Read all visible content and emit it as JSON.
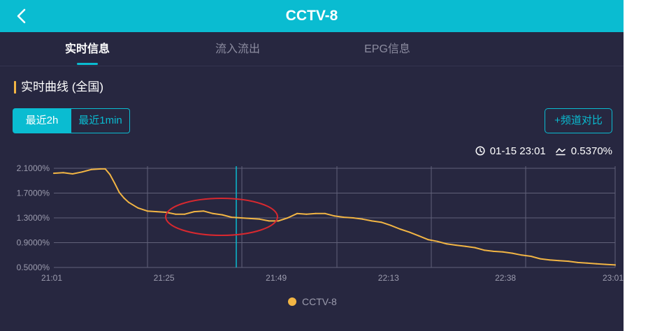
{
  "header": {
    "title": "CCTV-8",
    "back_icon": "chevron-left-icon"
  },
  "tabs": [
    {
      "label": "实时信息",
      "active": true
    },
    {
      "label": "流入流出",
      "active": false
    },
    {
      "label": "EPG信息",
      "active": false
    }
  ],
  "section": {
    "title": "实时曲线 (全国)"
  },
  "range_buttons": [
    {
      "label": "最近2h",
      "selected": true
    },
    {
      "label": "最近1min",
      "selected": false
    }
  ],
  "compare_button": {
    "label": "+频道对比"
  },
  "readout": {
    "time_icon": "clock-icon",
    "time": "01-15 23:01",
    "value_icon": "trend-icon",
    "value": "0.5370%"
  },
  "colors": {
    "accent": "#0abcd1",
    "background": "#272740",
    "line": "#f2b544",
    "annotation": "#d7282f",
    "grid": "#62627a",
    "muted_text": "#8c8ca0"
  },
  "chart_data": {
    "type": "line",
    "xlim": [
      "21:01",
      "23:01"
    ],
    "x_tick_labels": [
      "21:01",
      "21:25",
      "21:49",
      "22:13",
      "22:38",
      "23:01"
    ],
    "ylim": [
      0.5,
      2.1
    ],
    "y_ticks": [
      0.5,
      0.9,
      1.3,
      1.7,
      2.1
    ],
    "y_tick_labels": [
      "0.5000%",
      "0.9000%",
      "1.3000%",
      "1.7000%",
      "2.1000%"
    ],
    "grid": true,
    "legend_position": "bottom-center",
    "marker_time": "21:40",
    "series": [
      {
        "name": "CCTV-8",
        "points": [
          [
            "21:01",
            2.02
          ],
          [
            "21:03",
            2.03
          ],
          [
            "21:05",
            2.01
          ],
          [
            "21:07",
            2.04
          ],
          [
            "21:09",
            2.08
          ],
          [
            "21:11",
            2.09
          ],
          [
            "21:12",
            2.09
          ],
          [
            "21:13",
            2.0
          ],
          [
            "21:14",
            1.86
          ],
          [
            "21:15",
            1.71
          ],
          [
            "21:16",
            1.62
          ],
          [
            "21:17",
            1.55
          ],
          [
            "21:19",
            1.46
          ],
          [
            "21:21",
            1.41
          ],
          [
            "21:23",
            1.4
          ],
          [
            "21:25",
            1.39
          ],
          [
            "21:27",
            1.36
          ],
          [
            "21:29",
            1.36
          ],
          [
            "21:31",
            1.4
          ],
          [
            "21:33",
            1.41
          ],
          [
            "21:35",
            1.37
          ],
          [
            "21:37",
            1.35
          ],
          [
            "21:39",
            1.31
          ],
          [
            "21:41",
            1.3
          ],
          [
            "21:43",
            1.29
          ],
          [
            "21:45",
            1.28
          ],
          [
            "21:47",
            1.25
          ],
          [
            "21:49",
            1.25
          ],
          [
            "21:51",
            1.3
          ],
          [
            "21:53",
            1.37
          ],
          [
            "21:55",
            1.36
          ],
          [
            "21:57",
            1.37
          ],
          [
            "21:59",
            1.37
          ],
          [
            "22:01",
            1.33
          ],
          [
            "22:03",
            1.31
          ],
          [
            "22:05",
            1.3
          ],
          [
            "22:07",
            1.28
          ],
          [
            "22:09",
            1.25
          ],
          [
            "22:11",
            1.23
          ],
          [
            "22:13",
            1.18
          ],
          [
            "22:15",
            1.12
          ],
          [
            "22:17",
            1.07
          ],
          [
            "22:19",
            1.01
          ],
          [
            "22:21",
            0.95
          ],
          [
            "22:23",
            0.92
          ],
          [
            "22:25",
            0.88
          ],
          [
            "22:27",
            0.86
          ],
          [
            "22:29",
            0.84
          ],
          [
            "22:31",
            0.82
          ],
          [
            "22:33",
            0.78
          ],
          [
            "22:35",
            0.76
          ],
          [
            "22:37",
            0.75
          ],
          [
            "22:39",
            0.73
          ],
          [
            "22:41",
            0.7
          ],
          [
            "22:43",
            0.68
          ],
          [
            "22:45",
            0.64
          ],
          [
            "22:47",
            0.62
          ],
          [
            "22:49",
            0.61
          ],
          [
            "22:51",
            0.6
          ],
          [
            "22:53",
            0.58
          ],
          [
            "22:55",
            0.57
          ],
          [
            "22:57",
            0.56
          ],
          [
            "22:59",
            0.55
          ],
          [
            "23:01",
            0.54
          ]
        ]
      }
    ]
  }
}
